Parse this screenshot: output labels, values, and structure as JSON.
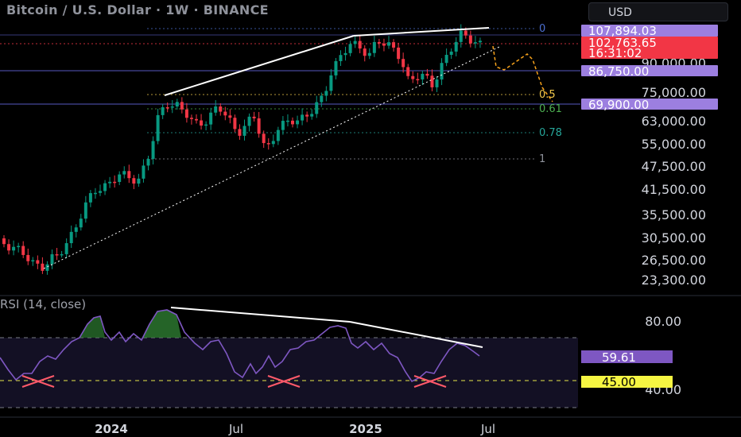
{
  "header": {
    "title": "Bitcoin / U.S. Dollar · 1W · BINANCE",
    "currency": "USD"
  },
  "rsi": {
    "title": "RSI (14, close)",
    "value_label": "59.61",
    "level_label": "45.00"
  },
  "chart_data": {
    "type": "candlestick",
    "price_axis_ticks": [
      "90,000.00",
      "75,000.00",
      "63,000.00",
      "55,000.00",
      "47,500.00",
      "41,500.00",
      "35,500.00",
      "30,500.00",
      "26,500.00",
      "23,300.00"
    ],
    "price_labels": [
      {
        "text": "107,894.03",
        "color": "#9c7fe0"
      },
      {
        "text": "102,763.65",
        "sub": "16:31:02",
        "color": "#f23645"
      },
      {
        "text": "86,750.00",
        "color": "#9c7fe0"
      },
      {
        "text": "69,900.00",
        "color": "#9c7fe0"
      }
    ],
    "fib_labels": [
      {
        "text": "0",
        "color": "#4c6fd1"
      },
      {
        "text": "0.5",
        "color": "#f2c94c"
      },
      {
        "text": "0.61",
        "color": "#4caf50"
      },
      {
        "text": "0.78",
        "color": "#26a69a"
      },
      {
        "text": "1",
        "color": "#8f929b"
      }
    ],
    "rsi_axis_ticks": [
      "80.00",
      "40.00"
    ],
    "time_axis_ticks": [
      {
        "text": "2024",
        "bold": true
      },
      {
        "text": "Jul",
        "bold": false
      },
      {
        "text": "2025",
        "bold": true
      },
      {
        "text": "Jul",
        "bold": false
      }
    ],
    "colors": {
      "up": "#089981",
      "down": "#f23645",
      "rsi_line": "#7e57c2",
      "projection": "#f7a21b",
      "accent": "#9c7fe0"
    }
  }
}
